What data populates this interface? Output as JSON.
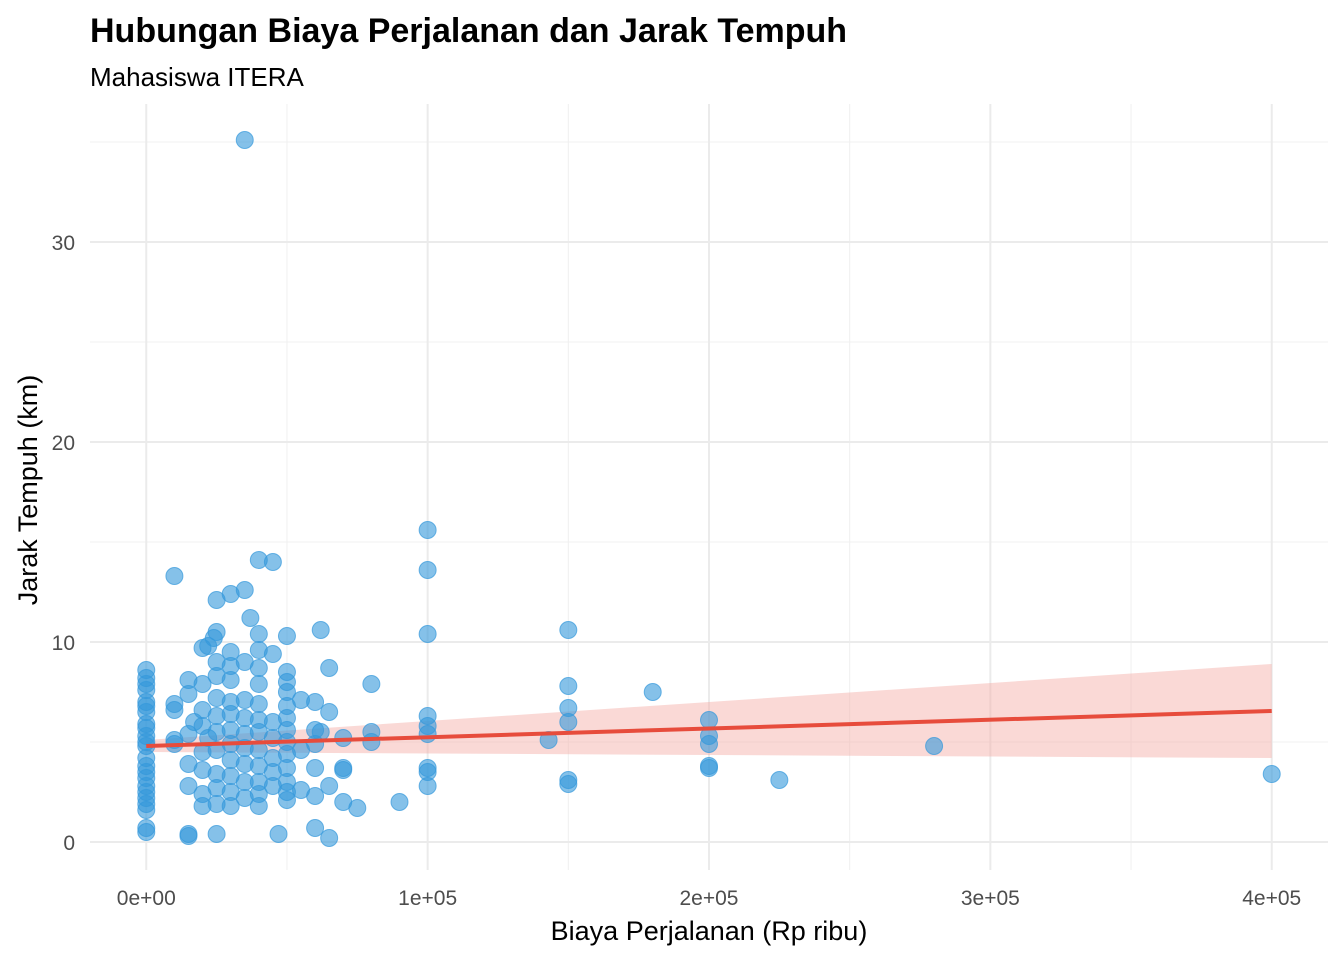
{
  "chart_data": {
    "type": "scatter",
    "title": "Hubungan Biaya Perjalanan dan Jarak Tempuh",
    "subtitle": "Mahasiswa ITERA",
    "xlabel": "Biaya Perjalanan (Rp ribu)",
    "ylabel": "Jarak Tempuh (km)",
    "xlim": [
      -20000,
      420000
    ],
    "ylim": [
      -1.4,
      36.9
    ],
    "x_ticks": [
      0,
      100000,
      200000,
      300000,
      400000
    ],
    "x_tick_labels": [
      "0e+00",
      "1e+05",
      "2e+05",
      "3e+05",
      "4e+05"
    ],
    "y_ticks": [
      0,
      10,
      20,
      30
    ],
    "y_tick_labels": [
      "0",
      "10",
      "20",
      "30"
    ],
    "grid": true,
    "colors": {
      "points": "#3498db",
      "trend_line": "#e74c3c",
      "confidence_band": "#f4aaa3"
    },
    "trend": {
      "method": "linear",
      "x": [
        0,
        400000
      ],
      "y": [
        4.8,
        6.55
      ],
      "ci_lower": [
        4.5,
        4.2
      ],
      "ci_upper": [
        5.1,
        8.9
      ]
    },
    "points": [
      [
        35000,
        35.1
      ],
      [
        10000,
        13.3
      ],
      [
        40000,
        14.1
      ],
      [
        45000,
        14.0
      ],
      [
        25000,
        12.1
      ],
      [
        30000,
        12.4
      ],
      [
        35000,
        12.6
      ],
      [
        37000,
        11.2
      ],
      [
        100000,
        15.6
      ],
      [
        100000,
        13.6
      ],
      [
        100000,
        10.4
      ],
      [
        150000,
        10.6
      ],
      [
        62000,
        10.6
      ],
      [
        50000,
        10.3
      ],
      [
        40000,
        10.4
      ],
      [
        25000,
        10.5
      ],
      [
        24000,
        10.2
      ],
      [
        45000,
        9.4
      ],
      [
        20000,
        9.7
      ],
      [
        22000,
        9.8
      ],
      [
        30000,
        9.5
      ],
      [
        40000,
        9.6
      ],
      [
        65000,
        8.7
      ],
      [
        80000,
        7.9
      ],
      [
        180000,
        7.5
      ],
      [
        150000,
        7.8
      ],
      [
        150000,
        6.7
      ],
      [
        150000,
        6.0
      ],
      [
        150000,
        3.1
      ],
      [
        150000,
        2.9
      ],
      [
        143000,
        5.1
      ],
      [
        200000,
        6.1
      ],
      [
        200000,
        5.3
      ],
      [
        200000,
        4.9
      ],
      [
        200000,
        3.8
      ],
      [
        200000,
        3.7
      ],
      [
        225000,
        3.1
      ],
      [
        280000,
        4.8
      ],
      [
        400000,
        3.4
      ],
      [
        100000,
        6.3
      ],
      [
        100000,
        5.8
      ],
      [
        100000,
        5.4
      ],
      [
        100000,
        3.7
      ],
      [
        100000,
        3.5
      ],
      [
        100000,
        2.8
      ],
      [
        90000,
        2.0
      ],
      [
        75000,
        1.7
      ],
      [
        70000,
        2.0
      ],
      [
        65000,
        0.2
      ],
      [
        60000,
        0.7
      ],
      [
        47000,
        0.4
      ],
      [
        25000,
        0.4
      ],
      [
        15000,
        0.3
      ],
      [
        15000,
        0.4
      ],
      [
        80000,
        5.5
      ],
      [
        80000,
        5.0
      ],
      [
        70000,
        3.6
      ],
      [
        70000,
        3.7
      ],
      [
        70000,
        5.2
      ],
      [
        65000,
        6.5
      ],
      [
        60000,
        7.0
      ],
      [
        55000,
        7.1
      ],
      [
        65000,
        2.8
      ],
      [
        60000,
        2.3
      ],
      [
        60000,
        3.7
      ],
      [
        60000,
        5.6
      ],
      [
        62000,
        5.5
      ],
      [
        0,
        8.6
      ],
      [
        0,
        8.2
      ],
      [
        0,
        7.9
      ],
      [
        0,
        7.6
      ],
      [
        0,
        7.0
      ],
      [
        0,
        6.8
      ],
      [
        0,
        6.5
      ],
      [
        0,
        5.9
      ],
      [
        0,
        5.7
      ],
      [
        0,
        5.3
      ],
      [
        0,
        5.0
      ],
      [
        0,
        4.8
      ],
      [
        0,
        4.2
      ],
      [
        0,
        3.8
      ],
      [
        0,
        3.5
      ],
      [
        0,
        3.2
      ],
      [
        0,
        2.8
      ],
      [
        0,
        2.5
      ],
      [
        0,
        2.2
      ],
      [
        0,
        1.9
      ],
      [
        0,
        1.6
      ],
      [
        0,
        0.5
      ],
      [
        0,
        0.7
      ],
      [
        10000,
        6.9
      ],
      [
        10000,
        6.6
      ],
      [
        10000,
        5.1
      ],
      [
        10000,
        4.9
      ],
      [
        15000,
        8.1
      ],
      [
        15000,
        7.4
      ],
      [
        15000,
        5.4
      ],
      [
        15000,
        3.9
      ],
      [
        15000,
        2.8
      ],
      [
        17000,
        6.0
      ],
      [
        20000,
        7.9
      ],
      [
        20000,
        6.6
      ],
      [
        20000,
        5.8
      ],
      [
        20000,
        4.5
      ],
      [
        20000,
        3.6
      ],
      [
        20000,
        2.4
      ],
      [
        20000,
        1.8
      ],
      [
        22000,
        5.2
      ],
      [
        25000,
        9.0
      ],
      [
        25000,
        8.3
      ],
      [
        25000,
        7.2
      ],
      [
        25000,
        6.3
      ],
      [
        25000,
        5.5
      ],
      [
        25000,
        4.6
      ],
      [
        25000,
        3.4
      ],
      [
        25000,
        2.7
      ],
      [
        25000,
        1.9
      ],
      [
        30000,
        8.8
      ],
      [
        30000,
        8.1
      ],
      [
        30000,
        7.0
      ],
      [
        30000,
        6.4
      ],
      [
        30000,
        5.6
      ],
      [
        30000,
        4.9
      ],
      [
        30000,
        4.1
      ],
      [
        30000,
        3.3
      ],
      [
        30000,
        2.5
      ],
      [
        30000,
        1.8
      ],
      [
        35000,
        9.0
      ],
      [
        35000,
        7.1
      ],
      [
        35000,
        6.2
      ],
      [
        35000,
        5.4
      ],
      [
        35000,
        4.7
      ],
      [
        35000,
        3.9
      ],
      [
        35000,
        3.0
      ],
      [
        35000,
        2.2
      ],
      [
        40000,
        8.7
      ],
      [
        40000,
        7.9
      ],
      [
        40000,
        6.9
      ],
      [
        40000,
        6.1
      ],
      [
        40000,
        5.5
      ],
      [
        40000,
        4.6
      ],
      [
        40000,
        3.8
      ],
      [
        40000,
        3.0
      ],
      [
        40000,
        2.4
      ],
      [
        40000,
        1.8
      ],
      [
        45000,
        6.0
      ],
      [
        45000,
        5.2
      ],
      [
        45000,
        4.2
      ],
      [
        45000,
        3.5
      ],
      [
        45000,
        2.8
      ],
      [
        50000,
        8.5
      ],
      [
        50000,
        8.0
      ],
      [
        50000,
        7.5
      ],
      [
        50000,
        6.8
      ],
      [
        50000,
        6.2
      ],
      [
        50000,
        5.6
      ],
      [
        50000,
        5.0
      ],
      [
        50000,
        4.4
      ],
      [
        50000,
        3.7
      ],
      [
        50000,
        3.0
      ],
      [
        50000,
        2.5
      ],
      [
        50000,
        2.1
      ],
      [
        55000,
        4.6
      ],
      [
        55000,
        2.6
      ],
      [
        60000,
        4.9
      ]
    ]
  }
}
